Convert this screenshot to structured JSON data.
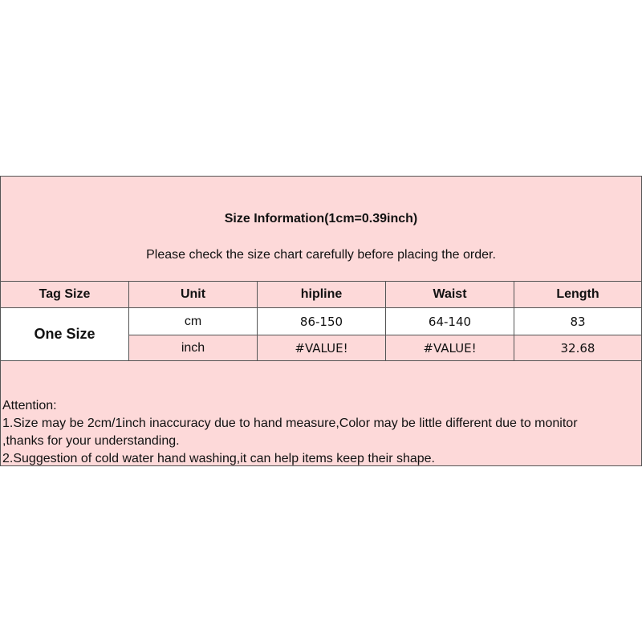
{
  "title": "Size Information(1cm=0.39inch)",
  "subtitle": "Please check the size chart carefully before placing the order.",
  "table": {
    "headers": [
      "Tag Size",
      "Unit",
      "hipline",
      "Waist",
      "Length"
    ],
    "tag_size": "One Size",
    "rows": [
      {
        "unit": "cm",
        "hipline": "86-150",
        "waist": "64-140",
        "length": "83"
      },
      {
        "unit": "inch",
        "hipline": "#VALUE!",
        "waist": "#VALUE!",
        "length": "32.68"
      }
    ]
  },
  "notes": [
    "Attention:",
    "1.Size may be 2cm/1inch inaccuracy due to hand measure,Color may be little different due to monitor",
    ",thanks for your understanding.",
    "2.Suggestion of cold water hand washing,it can help items keep their shape."
  ],
  "colors": {
    "background": "#fdd9d9",
    "border": "#555555"
  }
}
